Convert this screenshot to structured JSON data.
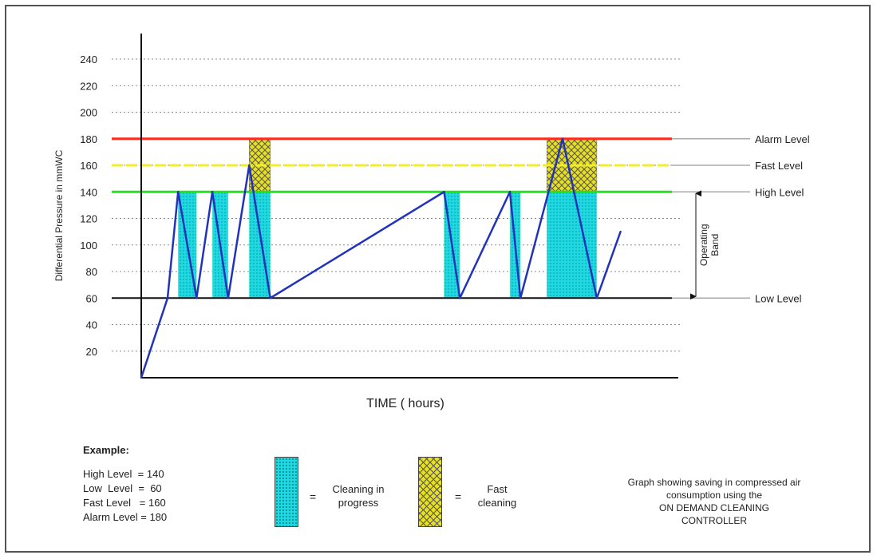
{
  "chart_data": {
    "type": "line",
    "xlabel": "TIME ( hours)",
    "ylabel": "Differential Pressure in mmWC",
    "ylim": [
      0,
      240
    ],
    "yticks": [
      20,
      40,
      60,
      80,
      100,
      120,
      140,
      160,
      180,
      200,
      220,
      240
    ],
    "grid": true,
    "levels": [
      {
        "name": "Alarm Level",
        "value": 180,
        "color": "#ff2a1a"
      },
      {
        "name": "Fast Level",
        "value": 160,
        "color": "#f2ee2a"
      },
      {
        "name": "High Level",
        "value": 140,
        "color": "#22e51e"
      },
      {
        "name": "Low Level",
        "value": 60,
        "color": "#111111"
      }
    ],
    "band_label": "Operating Band",
    "series": [
      {
        "color": "#2233bb",
        "points": [
          [
            0,
            0
          ],
          [
            10,
            60
          ],
          [
            14,
            140
          ],
          [
            21,
            60
          ],
          [
            27,
            140
          ],
          [
            33,
            60
          ],
          [
            41,
            160
          ],
          [
            49,
            60
          ],
          [
            115,
            140
          ],
          [
            121,
            60
          ],
          [
            140,
            140
          ],
          [
            144,
            60
          ],
          [
            160,
            180
          ],
          [
            173,
            60
          ],
          [
            182,
            110
          ]
        ]
      }
    ],
    "cleaning_periods": [
      [
        14,
        21
      ],
      [
        27,
        33
      ],
      [
        41,
        49
      ],
      [
        115,
        121
      ],
      [
        140,
        144
      ],
      [
        154,
        173
      ]
    ],
    "fast_cleaning_periods": [
      [
        41,
        49
      ],
      [
        154,
        173
      ]
    ]
  },
  "example": {
    "title": "Example:",
    "lines": [
      "High Level  = 140",
      "Low  Level  =  60",
      "Fast Level   = 160",
      "Alarm Level = 180"
    ]
  },
  "legend": {
    "eq": "=",
    "cleaning": [
      "Cleaning in",
      "progress"
    ],
    "fast": [
      "Fast",
      "cleaning"
    ]
  },
  "caption": [
    "Graph showing saving in compressed air",
    "consumption using  the",
    "ON  DEMAND CLEANING",
    "CONTROLLER"
  ],
  "colors": {
    "cleaning": "#1ed9e2",
    "fast": "#e7e020",
    "series": "#2233bb",
    "grid": "#888888"
  }
}
